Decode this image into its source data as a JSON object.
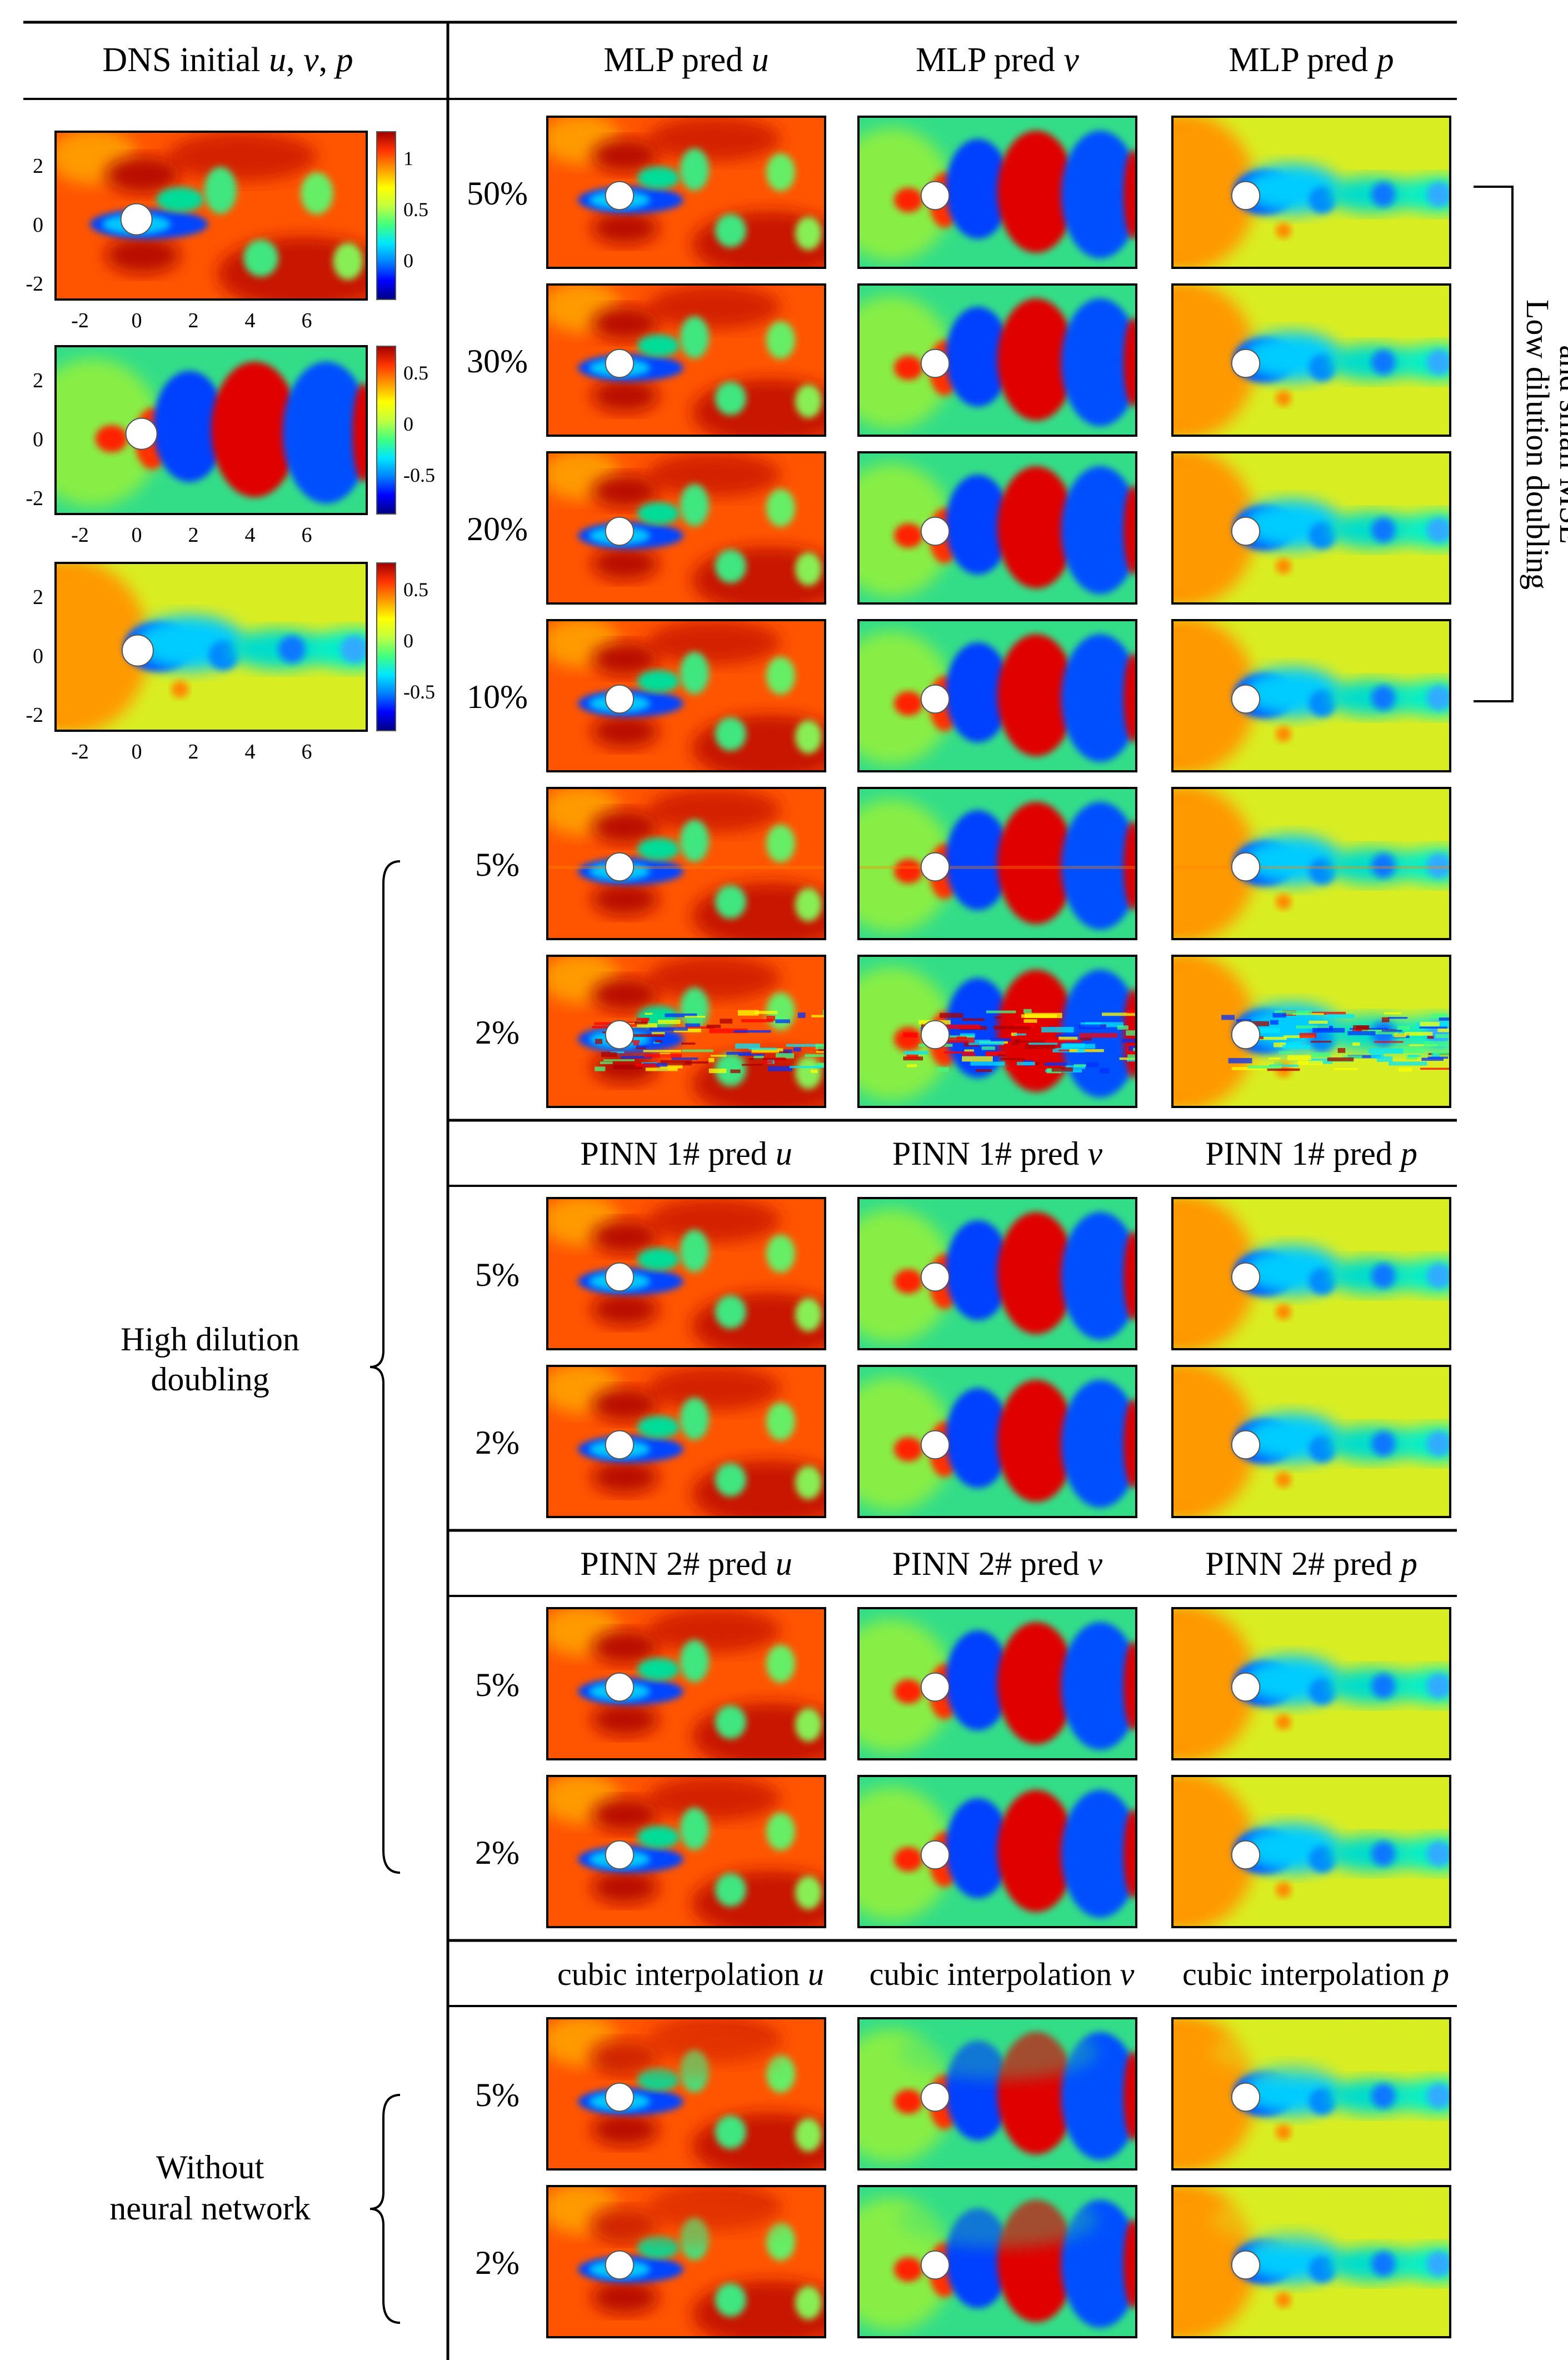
{
  "dns": {
    "header": "DNS initial",
    "vars": [
      "u",
      "v",
      "p"
    ],
    "panels": [
      {
        "field": "u",
        "yticks": [
          "2",
          "0",
          "-2"
        ],
        "xticks": [
          "-2",
          "0",
          "2",
          "4",
          "6"
        ],
        "colorbar": [
          "1",
          "0.5",
          "0"
        ]
      },
      {
        "field": "v",
        "yticks": [
          "2",
          "0",
          "-2"
        ],
        "xticks": [
          "-2",
          "0",
          "2",
          "4",
          "6"
        ],
        "colorbar": [
          "0.5",
          "0",
          "-0.5"
        ]
      },
      {
        "field": "p",
        "yticks": [
          "2",
          "0",
          "-2"
        ],
        "xticks": [
          "-2",
          "0",
          "2",
          "4",
          "6"
        ],
        "colorbar": [
          "0.5",
          "0",
          "-0.5"
        ]
      }
    ]
  },
  "groups": [
    {
      "model": "MLP pred",
      "header_style": "short",
      "rows": [
        {
          "label": "50%",
          "quality": "clean"
        },
        {
          "label": "30%",
          "quality": "clean"
        },
        {
          "label": "20%",
          "quality": "clean"
        },
        {
          "label": "10%",
          "quality": "clean"
        },
        {
          "label": "5%",
          "quality": "slight"
        },
        {
          "label": "2%",
          "quality": "noisy"
        }
      ]
    },
    {
      "model": "PINN 1# pred",
      "header_style": "short",
      "rows": [
        {
          "label": "5%",
          "quality": "clean"
        },
        {
          "label": "2%",
          "quality": "clean"
        }
      ]
    },
    {
      "model": "PINN 2# pred",
      "header_style": "short",
      "rows": [
        {
          "label": "5%",
          "quality": "clean"
        },
        {
          "label": "2%",
          "quality": "clean"
        }
      ]
    },
    {
      "model": "cubic interpolation",
      "header_style": "long",
      "rows": [
        {
          "label": "5%",
          "quality": "interp"
        },
        {
          "label": "2%",
          "quality": "interp"
        }
      ]
    }
  ],
  "fields": [
    "u",
    "v",
    "p"
  ],
  "annotations": {
    "low": [
      "Low dilution doubling",
      "and small MSE"
    ],
    "high": [
      "High dilution",
      "doubling"
    ],
    "without": [
      "Without",
      "neural network"
    ]
  },
  "colors": {
    "colormap": [
      "#00007f",
      "#0000ff",
      "#0080ff",
      "#00e6ff",
      "#40ff80",
      "#c0ff40",
      "#ffff00",
      "#ff9900",
      "#ff3300",
      "#a00000"
    ],
    "cylinder": "#ffffff",
    "line": "#000000"
  }
}
